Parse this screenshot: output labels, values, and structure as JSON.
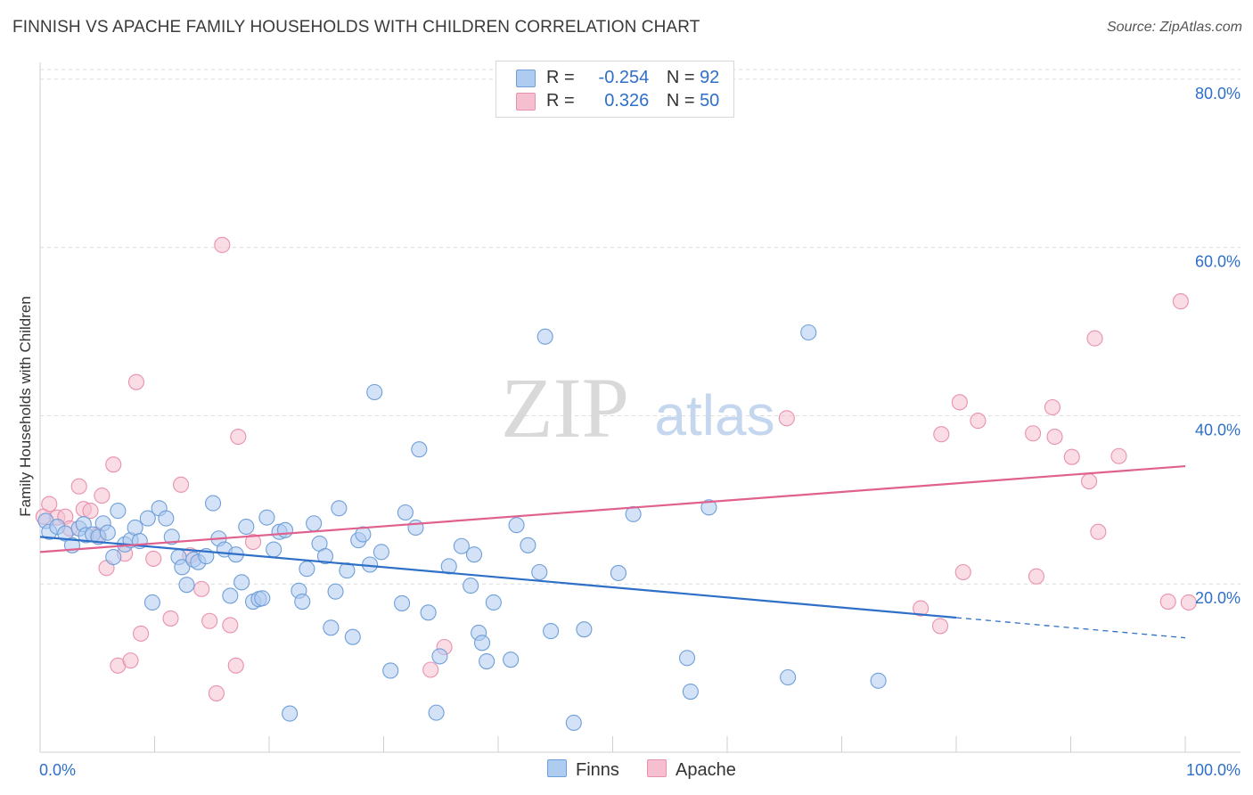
{
  "header": {
    "title": "FINNISH VS APACHE FAMILY HOUSEHOLDS WITH CHILDREN CORRELATION CHART",
    "source": "Source: ZipAtlas.com"
  },
  "legend": {
    "rows": [
      {
        "r_label": "R =",
        "r_value": "-0.254",
        "n_label": "N =",
        "n_value": "92"
      },
      {
        "r_label": "R =",
        "r_value": "0.326",
        "n_label": "N =",
        "n_value": "50"
      }
    ],
    "bottom": [
      {
        "label": "Finns"
      },
      {
        "label": "Apache"
      }
    ]
  },
  "watermark": {
    "zip": "ZIP",
    "atlas": "atlas"
  },
  "colors": {
    "finns_fill": "#aecbf0",
    "finns_stroke": "#6f9fd8",
    "finns_line": "#2e6fc8",
    "apache_fill": "#f6bfd0",
    "apache_stroke": "#e891ae",
    "apache_line": "#e0608e",
    "axis_text": "#2e6fc8",
    "grid": "#dcdcdc"
  },
  "chart_data": {
    "type": "scatter",
    "title": "FINNISH VS APACHE FAMILY HOUSEHOLDS WITH CHILDREN CORRELATION CHART",
    "xlabel": "",
    "ylabel": "Family Households with Children",
    "xlim": [
      0,
      100
    ],
    "ylim": [
      0,
      82
    ],
    "x_tick_labels": [
      "0.0%",
      "100.0%"
    ],
    "y_ticks": [
      20,
      40,
      60,
      80
    ],
    "y_tick_labels": [
      "20.0%",
      "40.0%",
      "60.0%",
      "80.0%"
    ],
    "grid": true,
    "legend_position": "top-center",
    "series": [
      {
        "name": "Finns",
        "r": -0.254,
        "n": 92,
        "trend": {
          "x0": 0,
          "y0": 25.6,
          "x1": 80,
          "y1": 16.0,
          "dashed_to_x": 100,
          "dashed_to_y": 13.6
        },
        "points": [
          [
            0.5,
            27.5
          ],
          [
            0.8,
            26.2
          ],
          [
            1.5,
            26.8
          ],
          [
            2.2,
            26.0
          ],
          [
            2.8,
            24.6
          ],
          [
            3.4,
            26.6
          ],
          [
            3.8,
            27.1
          ],
          [
            4.0,
            25.8
          ],
          [
            4.6,
            25.9
          ],
          [
            5.1,
            25.6
          ],
          [
            5.5,
            27.2
          ],
          [
            5.9,
            26.1
          ],
          [
            6.4,
            23.2
          ],
          [
            6.8,
            28.7
          ],
          [
            7.4,
            24.7
          ],
          [
            7.9,
            25.2
          ],
          [
            8.3,
            26.7
          ],
          [
            8.7,
            25.1
          ],
          [
            9.4,
            27.8
          ],
          [
            9.8,
            17.8
          ],
          [
            10.4,
            29.0
          ],
          [
            11.0,
            27.8
          ],
          [
            11.5,
            25.6
          ],
          [
            12.1,
            23.2
          ],
          [
            12.4,
            22.0
          ],
          [
            12.8,
            19.9
          ],
          [
            13.4,
            22.9
          ],
          [
            13.8,
            22.6
          ],
          [
            14.5,
            23.3
          ],
          [
            15.1,
            29.6
          ],
          [
            15.6,
            25.4
          ],
          [
            16.1,
            24.1
          ],
          [
            16.6,
            18.6
          ],
          [
            17.1,
            23.5
          ],
          [
            17.6,
            20.2
          ],
          [
            18.0,
            26.8
          ],
          [
            18.6,
            17.9
          ],
          [
            19.1,
            18.2
          ],
          [
            19.4,
            18.3
          ],
          [
            19.8,
            27.9
          ],
          [
            20.4,
            24.1
          ],
          [
            20.9,
            26.2
          ],
          [
            21.4,
            26.4
          ],
          [
            21.8,
            4.6
          ],
          [
            22.6,
            19.2
          ],
          [
            22.9,
            17.9
          ],
          [
            23.3,
            21.8
          ],
          [
            23.9,
            27.2
          ],
          [
            24.4,
            24.8
          ],
          [
            24.9,
            23.3
          ],
          [
            25.4,
            14.8
          ],
          [
            25.8,
            19.1
          ],
          [
            26.1,
            29.0
          ],
          [
            26.8,
            21.6
          ],
          [
            27.3,
            13.7
          ],
          [
            27.8,
            25.2
          ],
          [
            28.2,
            25.9
          ],
          [
            28.8,
            22.3
          ],
          [
            29.2,
            42.8
          ],
          [
            29.8,
            23.8
          ],
          [
            30.6,
            9.7
          ],
          [
            31.6,
            17.7
          ],
          [
            31.9,
            28.5
          ],
          [
            32.8,
            26.7
          ],
          [
            33.1,
            36.0
          ],
          [
            33.9,
            16.6
          ],
          [
            34.6,
            4.7
          ],
          [
            34.9,
            11.4
          ],
          [
            35.7,
            22.1
          ],
          [
            36.8,
            24.5
          ],
          [
            37.6,
            19.8
          ],
          [
            37.9,
            23.5
          ],
          [
            38.3,
            14.2
          ],
          [
            38.6,
            13.0
          ],
          [
            39.0,
            10.8
          ],
          [
            39.6,
            17.8
          ],
          [
            41.1,
            11.0
          ],
          [
            41.6,
            27.0
          ],
          [
            42.6,
            24.6
          ],
          [
            43.6,
            21.4
          ],
          [
            44.1,
            49.4
          ],
          [
            44.6,
            14.4
          ],
          [
            47.5,
            14.6
          ],
          [
            50.5,
            21.3
          ],
          [
            51.8,
            28.3
          ],
          [
            56.5,
            11.2
          ],
          [
            56.8,
            7.2
          ],
          [
            58.4,
            29.1
          ],
          [
            65.3,
            8.9
          ],
          [
            67.1,
            49.9
          ],
          [
            73.2,
            8.5
          ],
          [
            46.6,
            3.5
          ]
        ]
      },
      {
        "name": "Apache",
        "r": 0.326,
        "n": 50,
        "trend": {
          "x0": 0,
          "y0": 23.8,
          "x1": 100,
          "y1": 34.0
        },
        "points": [
          [
            0.3,
            28.0
          ],
          [
            0.8,
            29.5
          ],
          [
            1.5,
            27.9
          ],
          [
            2.2,
            28.0
          ],
          [
            2.6,
            26.6
          ],
          [
            3.4,
            31.6
          ],
          [
            3.8,
            28.9
          ],
          [
            4.4,
            28.7
          ],
          [
            5.0,
            25.8
          ],
          [
            5.4,
            30.5
          ],
          [
            5.8,
            21.9
          ],
          [
            6.4,
            34.2
          ],
          [
            6.8,
            10.3
          ],
          [
            7.4,
            23.6
          ],
          [
            7.9,
            10.9
          ],
          [
            8.4,
            44.0
          ],
          [
            8.8,
            14.1
          ],
          [
            9.9,
            23.0
          ],
          [
            11.4,
            15.9
          ],
          [
            12.3,
            31.8
          ],
          [
            13.1,
            23.4
          ],
          [
            14.1,
            19.4
          ],
          [
            14.8,
            15.6
          ],
          [
            15.4,
            7.0
          ],
          [
            15.9,
            60.3
          ],
          [
            16.6,
            15.1
          ],
          [
            17.1,
            10.3
          ],
          [
            17.3,
            37.5
          ],
          [
            18.6,
            25.0
          ],
          [
            34.1,
            9.8
          ],
          [
            35.3,
            12.5
          ],
          [
            65.2,
            39.7
          ],
          [
            76.9,
            17.1
          ],
          [
            78.6,
            15.0
          ],
          [
            78.7,
            37.8
          ],
          [
            80.3,
            41.6
          ],
          [
            80.6,
            21.4
          ],
          [
            81.9,
            39.4
          ],
          [
            86.7,
            37.9
          ],
          [
            87.0,
            20.9
          ],
          [
            88.4,
            41.0
          ],
          [
            88.6,
            37.5
          ],
          [
            90.1,
            35.1
          ],
          [
            91.6,
            32.2
          ],
          [
            92.1,
            49.2
          ],
          [
            92.4,
            26.2
          ],
          [
            94.2,
            35.2
          ],
          [
            98.5,
            17.9
          ],
          [
            99.6,
            53.6
          ],
          [
            100.3,
            17.8
          ]
        ]
      }
    ]
  }
}
